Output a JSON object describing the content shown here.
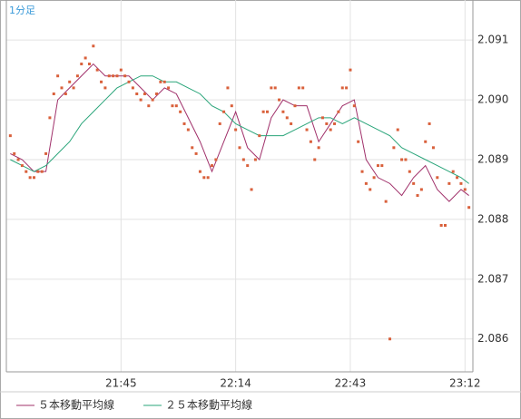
{
  "chart_data": {
    "type": "line",
    "label": "1分足",
    "xlim": [
      1276,
      1394
    ],
    "ylim": [
      2.08545,
      2.09167
    ],
    "xticks": [
      {
        "value": 1305,
        "label": "21:45"
      },
      {
        "value": 1334,
        "label": "22:14"
      },
      {
        "value": 1363,
        "label": "22:43"
      },
      {
        "value": 1392,
        "label": "23:12"
      }
    ],
    "yticks": [
      2.086,
      2.087,
      2.088,
      2.089,
      {
        "value": 2.09,
        "label": "2.090"
      },
      2.091
    ],
    "grid": true,
    "legend": "bottom",
    "points": {
      "color": "#d9603b",
      "x": [
        1277,
        1278,
        1279,
        1280,
        1281,
        1282,
        1283,
        1284,
        1285,
        1286,
        1287,
        1288,
        1289,
        1290,
        1291,
        1292,
        1293,
        1294,
        1295,
        1296,
        1297,
        1298,
        1299,
        1300,
        1301,
        1302,
        1303,
        1304,
        1305,
        1306,
        1307,
        1308,
        1309,
        1310,
        1311,
        1312,
        1313,
        1314,
        1315,
        1316,
        1317,
        1318,
        1319,
        1320,
        1321,
        1322,
        1323,
        1324,
        1325,
        1326,
        1327,
        1328,
        1329,
        1330,
        1331,
        1332,
        1333,
        1334,
        1335,
        1336,
        1337,
        1338,
        1339,
        1340,
        1341,
        1342,
        1343,
        1344,
        1345,
        1346,
        1347,
        1348,
        1349,
        1350,
        1351,
        1352,
        1353,
        1354,
        1355,
        1356,
        1357,
        1358,
        1359,
        1360,
        1361,
        1362,
        1363,
        1364,
        1365,
        1366,
        1367,
        1368,
        1369,
        1370,
        1371,
        1372,
        1373,
        1374,
        1375,
        1376,
        1377,
        1378,
        1379,
        1380,
        1381,
        1382,
        1383,
        1384,
        1385,
        1386,
        1387,
        1388,
        1389,
        1390,
        1391,
        1392,
        1393
      ],
      "values": [
        2.0894,
        2.0891,
        2.089,
        2.0889,
        2.0888,
        2.0887,
        2.0887,
        2.0888,
        2.0888,
        2.0891,
        2.0897,
        2.0901,
        2.0904,
        2.0902,
        2.0901,
        2.0903,
        2.0902,
        2.0904,
        2.0906,
        2.0907,
        2.0906,
        2.0909,
        2.0905,
        2.0903,
        2.0902,
        2.0904,
        2.0904,
        2.0904,
        2.0905,
        2.0904,
        2.0903,
        2.0902,
        2.0901,
        2.09,
        2.0901,
        2.0899,
        2.09,
        2.0901,
        2.0903,
        2.0903,
        2.0902,
        2.0899,
        2.0899,
        2.0898,
        2.0896,
        2.0895,
        2.0892,
        2.0891,
        2.0888,
        2.0887,
        2.0887,
        2.0889,
        2.089,
        2.0896,
        2.0898,
        2.0902,
        2.0899,
        2.0895,
        2.0892,
        2.089,
        2.0889,
        2.0885,
        2.089,
        2.0894,
        2.0898,
        2.0898,
        2.0902,
        2.0902,
        2.09,
        2.0898,
        2.0897,
        2.0896,
        2.0899,
        2.0902,
        2.0902,
        2.0895,
        2.0893,
        2.089,
        2.0892,
        2.0897,
        2.0896,
        2.0895,
        2.0896,
        2.0898,
        2.0902,
        2.0902,
        2.0905,
        2.0899,
        2.0893,
        2.0888,
        2.0886,
        2.0885,
        2.0887,
        2.0889,
        2.0889,
        2.0883,
        2.086,
        2.0892,
        2.0895,
        2.089,
        2.089,
        2.0888,
        2.0886,
        2.0884,
        2.0885,
        2.0893,
        2.0896,
        2.0892,
        2.0887,
        2.0879,
        2.0879,
        2.0886,
        2.0888,
        2.0887,
        2.0886,
        2.0885,
        2.0882
      ]
    },
    "series": [
      {
        "name": "５本移動平均線",
        "color": "#a0306a",
        "x": [
          1277,
          1280,
          1283,
          1286,
          1289,
          1292,
          1295,
          1298,
          1301,
          1304,
          1307,
          1310,
          1313,
          1316,
          1319,
          1322,
          1325,
          1328,
          1331,
          1334,
          1337,
          1340,
          1343,
          1346,
          1349,
          1352,
          1355,
          1358,
          1361,
          1364,
          1367,
          1370,
          1373,
          1376,
          1379,
          1382,
          1385,
          1388,
          1391,
          1393
        ],
        "values": [
          2.0891,
          2.089,
          2.0888,
          2.0888,
          2.09,
          2.0902,
          2.0904,
          2.0906,
          2.0904,
          2.0904,
          2.0904,
          2.0902,
          2.09,
          2.0902,
          2.0901,
          2.0897,
          2.0893,
          2.0888,
          2.0893,
          2.0898,
          2.0892,
          2.089,
          2.0897,
          2.09,
          2.0899,
          2.0899,
          2.0893,
          2.0896,
          2.0899,
          2.09,
          2.089,
          2.0887,
          2.0886,
          2.0884,
          2.0887,
          2.0889,
          2.0885,
          2.0883,
          2.0885,
          2.0884
        ]
      },
      {
        "name": "２５本移動平均線",
        "color": "#2aa57a",
        "x": [
          1277,
          1280,
          1283,
          1286,
          1289,
          1292,
          1295,
          1298,
          1301,
          1304,
          1307,
          1310,
          1313,
          1316,
          1319,
          1322,
          1325,
          1328,
          1331,
          1334,
          1337,
          1340,
          1343,
          1346,
          1349,
          1352,
          1355,
          1358,
          1361,
          1364,
          1367,
          1370,
          1373,
          1376,
          1379,
          1382,
          1385,
          1388,
          1391,
          1393
        ],
        "values": [
          2.089,
          2.0889,
          2.0888,
          2.0889,
          2.0891,
          2.0893,
          2.0896,
          2.0898,
          2.09,
          2.0902,
          2.0903,
          2.0904,
          2.0904,
          2.0903,
          2.0903,
          2.0902,
          2.0901,
          2.0899,
          2.0898,
          2.0896,
          2.0895,
          2.0894,
          2.0894,
          2.0894,
          2.0895,
          2.0896,
          2.0897,
          2.0897,
          2.0896,
          2.0897,
          2.0896,
          2.0895,
          2.0894,
          2.0892,
          2.0891,
          2.089,
          2.0889,
          2.0888,
          2.0887,
          2.0886
        ]
      }
    ]
  }
}
